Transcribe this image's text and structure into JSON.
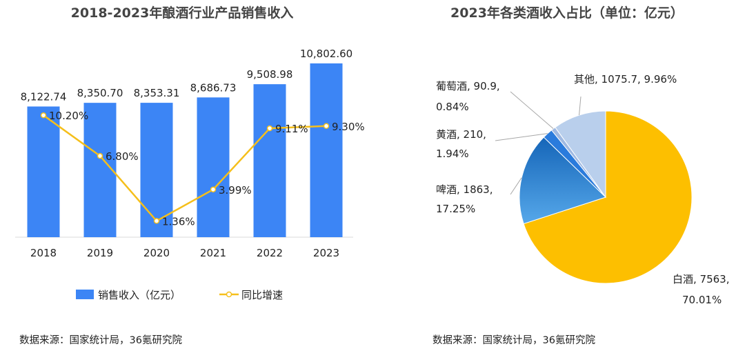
{
  "chart_data": [
    {
      "type": "bar",
      "title": "2018-2023年酿酒行业产品销售收入",
      "categories": [
        "2018",
        "2019",
        "2020",
        "2021",
        "2022",
        "2023"
      ],
      "series": [
        {
          "name": "销售收入（亿元）",
          "type": "bar",
          "values": [
            8122.74,
            8350.7,
            8353.31,
            8686.73,
            9508.98,
            10802.6
          ],
          "labels": [
            "8,122.74",
            "8,350.70",
            "8,353.31",
            "8,686.73",
            "9,508.98",
            "10,802.60"
          ]
        },
        {
          "name": "同比增速",
          "type": "line",
          "values": [
            10.2,
            6.8,
            1.36,
            3.99,
            9.11,
            9.3
          ],
          "labels": [
            "10.20%",
            "6.80%",
            "1.36%",
            "3.99%",
            "9.11%",
            "9.30%"
          ]
        }
      ],
      "bar_ylim": [
        0,
        12000
      ],
      "line_ylim": [
        0,
        12
      ],
      "legend_position": "bottom",
      "grid": false,
      "source": "数据来源：国家统计局，36氪研究院",
      "colors": {
        "bar": "#3c85f5",
        "line": "#f5bf1b"
      }
    },
    {
      "type": "pie",
      "title": "2023年各类酒收入占比（单位：亿元）",
      "slices": [
        {
          "name": "白酒",
          "value": 7563,
          "percent": 70.01,
          "label1": "白酒, 7563,",
          "label2": "70.01%",
          "color": "#fdbf00"
        },
        {
          "name": "啤酒",
          "value": 1863,
          "percent": 17.25,
          "label1": "啤酒, 1863,",
          "label2": "17.25%",
          "color": "#2f86d8"
        },
        {
          "name": "黄酒",
          "value": 210,
          "percent": 1.94,
          "label1": "黄酒, 210,",
          "label2": "1.94%",
          "color": "#2a7bdc"
        },
        {
          "name": "葡萄酒",
          "value": 90.9,
          "percent": 0.84,
          "label1": "葡萄酒, 90.9,",
          "label2": "0.84%",
          "color": "#9fb9e2"
        },
        {
          "name": "其他",
          "value": 1075.7,
          "percent": 9.96,
          "label1": "其他, 1075.7, 9.96%",
          "label2": "",
          "color": "#b9cfec"
        }
      ],
      "source": "数据来源：国家统计局，36氪研究院"
    }
  ]
}
